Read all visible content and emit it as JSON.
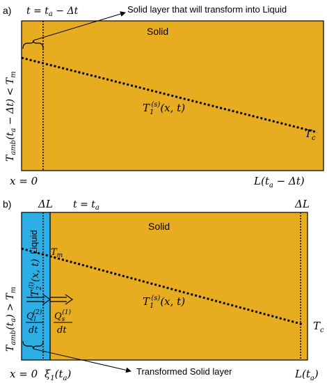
{
  "colors": {
    "solid": "#e8ac21",
    "liquid": "#2dafe6",
    "line": "#000000"
  },
  "panel_a": {
    "tag": "a)",
    "time": "t = t",
    "time_sub": "a",
    "time_tail": " − Δt",
    "callout": "Solid layer that will transform into Liquid",
    "region_label": "Solid",
    "temp_profile": "T",
    "temp_profile_sub": "1",
    "temp_profile_sup": "(s)",
    "temp_profile_args": "(x, t)",
    "right_temp": "T",
    "right_temp_sub": "c",
    "left_axis": "T",
    "left_axis_sub": "amb",
    "left_axis_mid": "(t",
    "left_axis_mid_sub": "a",
    "left_axis_tail": " − Δt) < T",
    "left_axis_tail_sub": "m",
    "x_left": "x = 0",
    "x_right": "L(t",
    "x_right_sub": "a",
    "x_right_tail": " − Δt)"
  },
  "panel_b": {
    "tag": "b)",
    "delta_left": "ΔL",
    "time": "t = t",
    "time_sub": "a",
    "delta_right": "ΔL",
    "region_label": "Solid",
    "liquid_label": "Liquid",
    "melt_temp": "T",
    "melt_temp_sub": "m",
    "liquid_temp": "T",
    "liquid_temp_sub": "2",
    "liquid_temp_sup": "(l)",
    "liquid_temp_args": "(x, t)",
    "temp_profile": "T",
    "temp_profile_sub": "1",
    "temp_profile_sup": "(s)",
    "temp_profile_args": "(x, t)",
    "right_temp": "T",
    "right_temp_sub": "c",
    "flux_liquid_num": "Q",
    "flux_liquid_sub": "l",
    "flux_liquid_sup": "(2)",
    "flux_liquid_den": "dt",
    "flux_solid_num": "Q",
    "flux_solid_sub": "s",
    "flux_solid_sup": "(1)",
    "flux_solid_den": "dt",
    "left_axis": "T",
    "left_axis_sub": "amb",
    "left_axis_mid": "(t",
    "left_axis_mid_sub": "a",
    "left_axis_tail": ") > T",
    "left_axis_tail_sub": "m",
    "callout": "Transformed Solid layer",
    "x_left": "x = 0",
    "x_front": "ξ",
    "x_front_sub": "1",
    "x_front_tail": "(t",
    "x_front_tail_sub": "a",
    "x_front_end": ")",
    "x_right": "L(t",
    "x_right_sub": "a",
    "x_right_end": ")"
  }
}
